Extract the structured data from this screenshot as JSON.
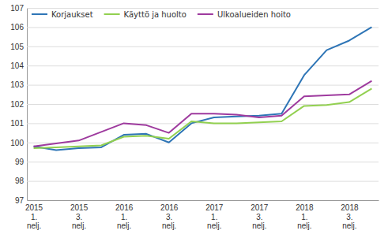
{
  "chart_data": {
    "type": "line",
    "categories": [
      "2015\n1.\nnelj.",
      null,
      "2015\n3.\nnelj.",
      null,
      "2016\n1.\nnelj.",
      null,
      "2016\n3.\nnelj.",
      null,
      "2017\n1.\nnelj.",
      null,
      "2017\n3.\nnelj.",
      null,
      "2018\n1.\nnelj.",
      null,
      "2018\n3.\nnelj.",
      null
    ],
    "series": [
      {
        "name": "Korjaukset",
        "color": "#2E75B6",
        "values": [
          99.8,
          99.6,
          99.7,
          99.75,
          100.4,
          100.45,
          100.0,
          101.0,
          101.3,
          101.35,
          101.4,
          101.5,
          103.5,
          104.8,
          105.3,
          106.0
        ]
      },
      {
        "name": "Käyttö ja huolto",
        "color": "#92D050",
        "values": [
          99.7,
          99.75,
          99.8,
          99.85,
          100.3,
          100.35,
          100.2,
          101.1,
          101.0,
          101.0,
          101.05,
          101.1,
          101.9,
          101.95,
          102.1,
          102.8
        ]
      },
      {
        "name": "Ulkoalueiden hoito",
        "color": "#9E3A9E",
        "values": [
          99.8,
          99.95,
          100.1,
          100.55,
          101.0,
          100.9,
          100.5,
          101.5,
          101.5,
          101.45,
          101.3,
          101.4,
          102.4,
          102.45,
          102.5,
          103.2
        ]
      }
    ],
    "ylim": [
      97,
      107
    ],
    "yticks": [
      97,
      98,
      99,
      100,
      101,
      102,
      103,
      104,
      105,
      106,
      107
    ],
    "grid": true,
    "legend": "upper left"
  }
}
